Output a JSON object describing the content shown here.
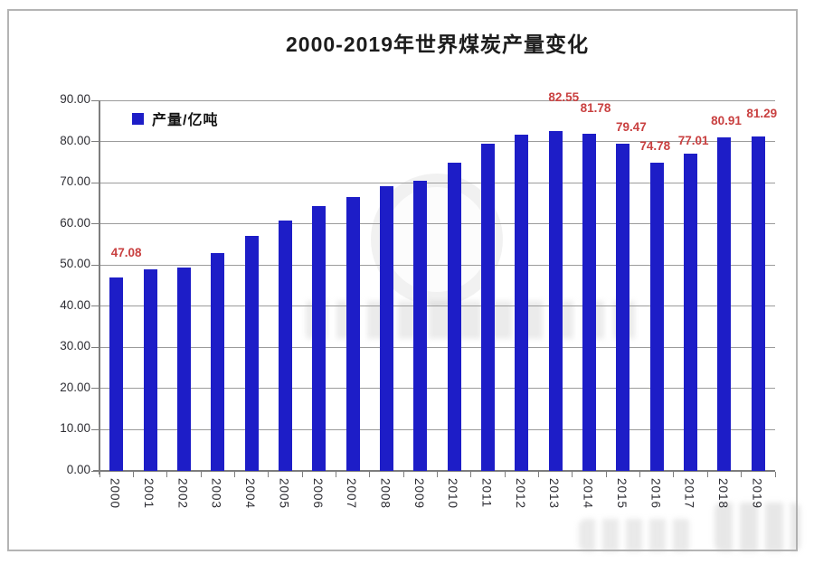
{
  "chart_data": {
    "type": "bar",
    "title": "2000-2019年世界煤炭产量变化",
    "legend": {
      "label": "产量/亿吨",
      "position": "top-left-inside"
    },
    "xlabel": "",
    "ylabel": "",
    "categories": [
      "2000",
      "2001",
      "2002",
      "2003",
      "2004",
      "2005",
      "2006",
      "2007",
      "2008",
      "2009",
      "2010",
      "2011",
      "2012",
      "2013",
      "2014",
      "2015",
      "2016",
      "2017",
      "2018",
      "2019"
    ],
    "values": [
      47.08,
      48.9,
      49.5,
      53.0,
      57.1,
      60.9,
      64.3,
      66.6,
      69.1,
      70.4,
      74.9,
      79.4,
      81.7,
      82.55,
      81.78,
      79.47,
      74.78,
      77.01,
      80.91,
      81.29
    ],
    "data_labels": [
      "47.08",
      null,
      null,
      null,
      null,
      null,
      null,
      null,
      null,
      null,
      null,
      null,
      null,
      "82.55",
      "81.78",
      "79.47",
      "74.78",
      "77.01",
      "80.91",
      "81.29"
    ],
    "ylim": [
      0,
      90
    ],
    "y_tick_labels": [
      "90.00",
      "80.00",
      "70.00",
      "60.00",
      "50.00",
      "40.00",
      "30.00",
      "20.00",
      "10.00",
      "0.00"
    ],
    "grid": "horizontal-on",
    "colors": {
      "bar": "#1d1dc7",
      "data_label": "#c94040",
      "grid_line": "#9b9b9b",
      "axis_line": "#7d7d7d",
      "tick_text": "#2e2e34",
      "title_text": "#1c1c1c",
      "frame_border": "#b4b4b4",
      "background": "#ffffff"
    }
  }
}
